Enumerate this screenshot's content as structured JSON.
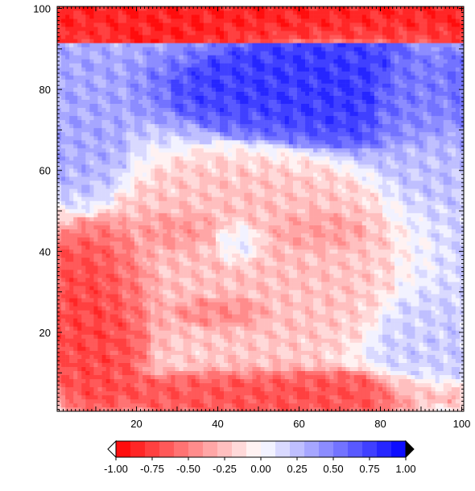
{
  "chart_data": {
    "type": "heatmap",
    "title": "",
    "xlabel": "",
    "ylabel": "",
    "xlim": [
      1,
      100
    ],
    "ylim": [
      1,
      100
    ],
    "grid": false,
    "x_ticks": [
      20,
      40,
      60,
      80,
      100
    ],
    "x_tick_labels": [
      "20",
      "40",
      "60",
      "80",
      "100"
    ],
    "y_ticks": [
      20,
      40,
      60,
      80,
      100
    ],
    "y_tick_labels": [
      "20",
      "40",
      "60",
      "80",
      "100"
    ],
    "colorbar": {
      "placement": "bottom",
      "range": [
        -1.0,
        1.0
      ],
      "levels": 20,
      "extend": "both",
      "ticks": [
        -1.0,
        -0.75,
        -0.5,
        -0.25,
        0.0,
        0.25,
        0.5,
        0.75,
        1.0
      ],
      "tick_labels": [
        "-1.00",
        "-0.75",
        "-0.50",
        "-0.25",
        "0.00",
        "0.25",
        "0.50",
        "0.75",
        "1.00"
      ],
      "colormap": {
        "low": "#ff0000",
        "mid": "#ffffff",
        "high": "#0000ff"
      }
    },
    "field": {
      "nx": 100,
      "ny": 100,
      "description_of_content": "",
      "regions": [
        {
          "kind": "band",
          "y_min": 92,
          "y_max": 100,
          "value": -0.95
        },
        {
          "kind": "ellipse",
          "cx": 68,
          "cy": 79,
          "rx": 40,
          "ry": 14,
          "value": 0.85
        },
        {
          "kind": "ellipse",
          "cx": 90,
          "cy": 72,
          "rx": 12,
          "ry": 20,
          "value": 0.25
        },
        {
          "kind": "ellipse",
          "cx": 8,
          "cy": 70,
          "rx": 10,
          "ry": 22,
          "value": 0.35
        },
        {
          "kind": "ellipse",
          "cx": 48,
          "cy": 38,
          "rx": 36,
          "ry": 30,
          "value": -0.3
        },
        {
          "kind": "ellipse",
          "cx": 30,
          "cy": 45,
          "rx": 10,
          "ry": 5,
          "value": -0.55
        },
        {
          "kind": "ellipse",
          "cx": 65,
          "cy": 45,
          "rx": 12,
          "ry": 5,
          "value": -0.5
        },
        {
          "kind": "ellipse",
          "cx": 45,
          "cy": 42,
          "rx": 6,
          "ry": 5,
          "value": 0.35
        },
        {
          "kind": "ellipse",
          "cx": 40,
          "cy": 25,
          "rx": 12,
          "ry": 4,
          "value": -0.65
        },
        {
          "kind": "ellipse",
          "cx": 10,
          "cy": 25,
          "rx": 14,
          "ry": 25,
          "value": -0.85
        },
        {
          "kind": "ellipse",
          "cx": 55,
          "cy": 5,
          "rx": 45,
          "ry": 6,
          "value": -0.8
        },
        {
          "kind": "ellipse",
          "cx": 90,
          "cy": 15,
          "rx": 12,
          "ry": 14,
          "value": 0.2
        }
      ]
    }
  }
}
